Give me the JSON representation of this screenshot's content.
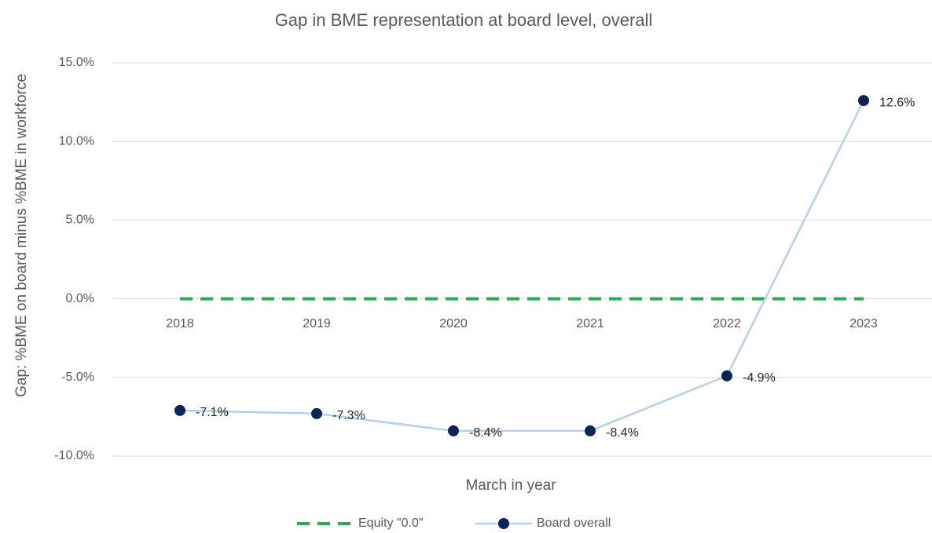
{
  "chart_data": {
    "type": "line",
    "title": "Gap in BME representation at board level, overall",
    "x_label": "March in year",
    "y_label": "Gap: %BME on board minus %BME in workforce",
    "categories": [
      "2018",
      "2019",
      "2020",
      "2021",
      "2022",
      "2023"
    ],
    "series": [
      {
        "name": "Equity \"0.0\"",
        "color": "#27ae55",
        "line_style": "dashed",
        "marker": false,
        "values": [
          0,
          0,
          0,
          0,
          0,
          0
        ]
      },
      {
        "name": "Board overall",
        "color": "#b5d0ea",
        "marker_color": "#0c2358",
        "line_style": "solid",
        "marker": true,
        "values": [
          -7.1,
          -7.3,
          -8.4,
          -8.4,
          -4.9,
          12.6
        ],
        "value_labels": [
          "-7.1%",
          "-7.3%",
          "-8.4%",
          "-8.4%",
          "-4.9%",
          "12.6%"
        ]
      }
    ],
    "ylim": [
      -10,
      15
    ],
    "yticks": [
      {
        "value": -10,
        "label": "-10.0%"
      },
      {
        "value": -5,
        "label": "-5.0%"
      },
      {
        "value": 0,
        "label": "0.0%"
      },
      {
        "value": 5,
        "label": "5.0%"
      },
      {
        "value": 10,
        "label": "10.0%"
      },
      {
        "value": 15,
        "label": "15.0%"
      }
    ],
    "grid": true,
    "legend": "bottom"
  }
}
